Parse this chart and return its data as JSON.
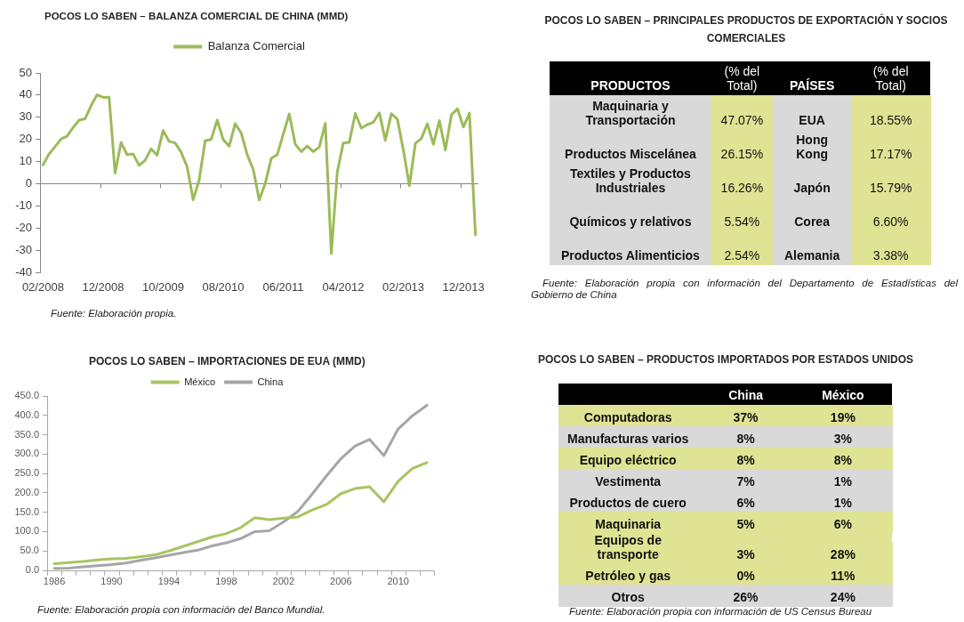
{
  "chart_data": [
    {
      "type": "line",
      "title": "POCOS LO SABEN – BALANZA COMERCIAL DE CHINA (MMD)",
      "legend": "top",
      "categories": [
        "02/2008",
        null,
        null,
        null,
        null,
        null,
        null,
        null,
        null,
        null,
        "12/2008",
        null,
        null,
        null,
        null,
        null,
        null,
        null,
        null,
        null,
        "10/2009",
        null,
        null,
        null,
        null,
        null,
        null,
        null,
        null,
        null,
        "08/2010",
        null,
        null,
        null,
        null,
        null,
        null,
        null,
        null,
        null,
        "06/2011",
        null,
        null,
        null,
        null,
        null,
        null,
        null,
        null,
        null,
        "04/2012",
        null,
        null,
        null,
        null,
        null,
        null,
        null,
        null,
        null,
        "02/2013",
        null,
        null,
        null,
        null,
        null,
        null,
        null,
        null,
        null,
        "12/2013",
        null,
        null
      ],
      "series": [
        {
          "name": "Balanza Comercial",
          "color": "#9bbb59",
          "values": [
            8.5,
            13.4,
            16.7,
            20.2,
            21.4,
            25.3,
            28.7,
            29.3,
            35.2,
            40.1,
            39.0,
            39.1,
            4.8,
            18.6,
            13.1,
            13.4,
            8.3,
            10.6,
            15.7,
            12.9,
            24.0,
            19.1,
            18.4,
            14.2,
            7.6,
            -7.2,
            1.7,
            19.5,
            20.0,
            28.7,
            20.0,
            16.9,
            27.1,
            22.9,
            13.1,
            6.5,
            -7.3,
            0.1,
            11.4,
            13.1,
            22.3,
            31.5,
            17.8,
            14.5,
            17.0,
            14.5,
            16.5,
            27.3,
            -31.5,
            5.4,
            18.4,
            18.7,
            31.7,
            25.1,
            26.7,
            27.7,
            32.0,
            19.6,
            31.6,
            29.2,
            15.2,
            -0.9,
            18.2,
            20.4,
            27.1,
            17.8,
            28.5,
            15.2,
            31.1,
            33.8,
            25.6,
            31.9,
            -23.0
          ]
        }
      ],
      "ylim": [
        -40,
        50
      ],
      "yticks": [
        -40,
        -30,
        -20,
        -10,
        0,
        10,
        20,
        30,
        40,
        50
      ],
      "annotations": [
        "Fuente: Elaboración propia."
      ]
    },
    {
      "type": "heatmap",
      "title": "POCOS LO SABEN – PRINCIPALES PRODUCTOS DE EXPORTACIÓN Y SOCIOS COMERCIALES",
      "ylabel": "PRODUCTOS",
      "y2label": "PAÍSES",
      "categories": [
        "(% del Total)",
        "(% del Total)"
      ],
      "y_categories": [
        "Maquinaria y Transportación",
        "Productos Miscelánea",
        "Textiles y Productos Industriales",
        "Químicos y relativos",
        "Productos Alimenticios"
      ],
      "y2_categories": [
        "EUA",
        "Hong Kong",
        "Japón",
        "Corea",
        "Alemania"
      ],
      "cells": [
        [
          47.07,
          18.55
        ],
        [
          26.15,
          17.17
        ],
        [
          16.26,
          15.79
        ],
        [
          5.54,
          6.6
        ],
        [
          2.54,
          3.38
        ]
      ],
      "cell_labels": [
        [
          "47.07%",
          "18.55%"
        ],
        [
          "26.15%",
          "17.17%"
        ],
        [
          "16.26%",
          "15.79%"
        ],
        [
          "5.54%",
          "6.60%"
        ],
        [
          "2.54%",
          "3.38%"
        ]
      ],
      "colors": [
        [
          "#dfe394",
          "#dfe394"
        ],
        [
          "#dfe394",
          "#dfe394"
        ],
        [
          "#dfe394",
          "#dfe394"
        ],
        [
          "#dfe394",
          "#dfe394"
        ],
        [
          "#dfe394",
          "#dfe394"
        ]
      ],
      "annotations": [
        "Fuente: Elaboración propia con información del Departamento de Estadísticas del Gobierno de China"
      ]
    },
    {
      "type": "line",
      "title": "POCOS LO SABEN – IMPORTACIONES DE EUA (MMD)",
      "legend": "top",
      "categories": [
        "1986",
        null,
        null,
        null,
        "1990",
        null,
        null,
        null,
        "1994",
        null,
        null,
        null,
        "1998",
        null,
        null,
        null,
        "2002",
        null,
        null,
        null,
        "2006",
        null,
        null,
        null,
        "2010",
        null,
        null
      ],
      "series": [
        {
          "name": "México",
          "color": "#a9c462",
          "values": [
            17,
            20,
            23,
            27,
            30,
            31,
            35,
            40,
            50,
            62,
            74,
            86,
            95,
            110,
            136,
            131,
            135,
            138,
            156,
            170,
            198,
            211,
            216,
            177,
            230,
            263,
            278
          ]
        },
        {
          "name": "China",
          "color": "#a6a6a6",
          "values": [
            5,
            6,
            9,
            12,
            15,
            19,
            26,
            32,
            39,
            46,
            52,
            63,
            71,
            82,
            100,
            102,
            125,
            152,
            197,
            244,
            288,
            321,
            338,
            296,
            365,
            399,
            426
          ]
        }
      ],
      "ylim": [
        0,
        450
      ],
      "yticks": [
        {
          "value": 0,
          "label": "0.0"
        },
        {
          "value": 50,
          "label": "50.0"
        },
        {
          "value": 100,
          "label": "100.0"
        },
        {
          "value": 150,
          "label": "150.0"
        },
        {
          "value": 200,
          "label": "200.0"
        },
        {
          "value": 250,
          "label": "250.0"
        },
        {
          "value": 300,
          "label": "300.0"
        },
        {
          "value": 350,
          "label": "350.0"
        },
        {
          "value": 400,
          "label": "400.0"
        },
        {
          "value": 450,
          "label": "450.0"
        }
      ],
      "annotations": [
        "Fuente: Elaboración propia con información del Banco Mundial."
      ]
    },
    {
      "type": "heatmap",
      "title": "POCOS LO SABEN – PRODUCTOS IMPORTADOS POR ESTADOS UNIDOS",
      "categories": [
        "China",
        "México"
      ],
      "y_categories": [
        "Computadoras",
        "Manufacturas varios",
        "Equipo eléctrico",
        "Vestimenta",
        "Productos de cuero",
        "Maquinaria",
        "Equipos de transporte",
        "Petróleo y gas",
        "Otros"
      ],
      "cells": [
        [
          37,
          19
        ],
        [
          8,
          3
        ],
        [
          8,
          8
        ],
        [
          7,
          1
        ],
        [
          6,
          1
        ],
        [
          5,
          6
        ],
        [
          3,
          28
        ],
        [
          0,
          11
        ],
        [
          26,
          24
        ]
      ],
      "cell_labels": [
        [
          "37%",
          "19%"
        ],
        [
          "8%",
          "3%"
        ],
        [
          "8%",
          "8%"
        ],
        [
          "7%",
          "1%"
        ],
        [
          "6%",
          "1%"
        ],
        [
          "5%",
          "6%"
        ],
        [
          "3%",
          "28%"
        ],
        [
          "0%",
          "11%"
        ],
        [
          "26%",
          "24%"
        ]
      ],
      "colors": [
        [
          "#dfe394",
          "#dfe394"
        ],
        [
          "#d9d9d9",
          "#d9d9d9"
        ],
        [
          "#dfe394",
          "#dfe394"
        ],
        [
          "#d9d9d9",
          "#d9d9d9"
        ],
        [
          "#d9d9d9",
          "#d9d9d9"
        ],
        [
          "#dfe394",
          "#dfe394"
        ],
        [
          "#dfe394",
          "#dfe394"
        ],
        [
          "#dfe394",
          "#dfe394"
        ],
        [
          "#d9d9d9",
          "#d9d9d9"
        ]
      ],
      "annotations": [
        "Fuente: Elaboración propia con información de US Census Bureau"
      ]
    }
  ]
}
